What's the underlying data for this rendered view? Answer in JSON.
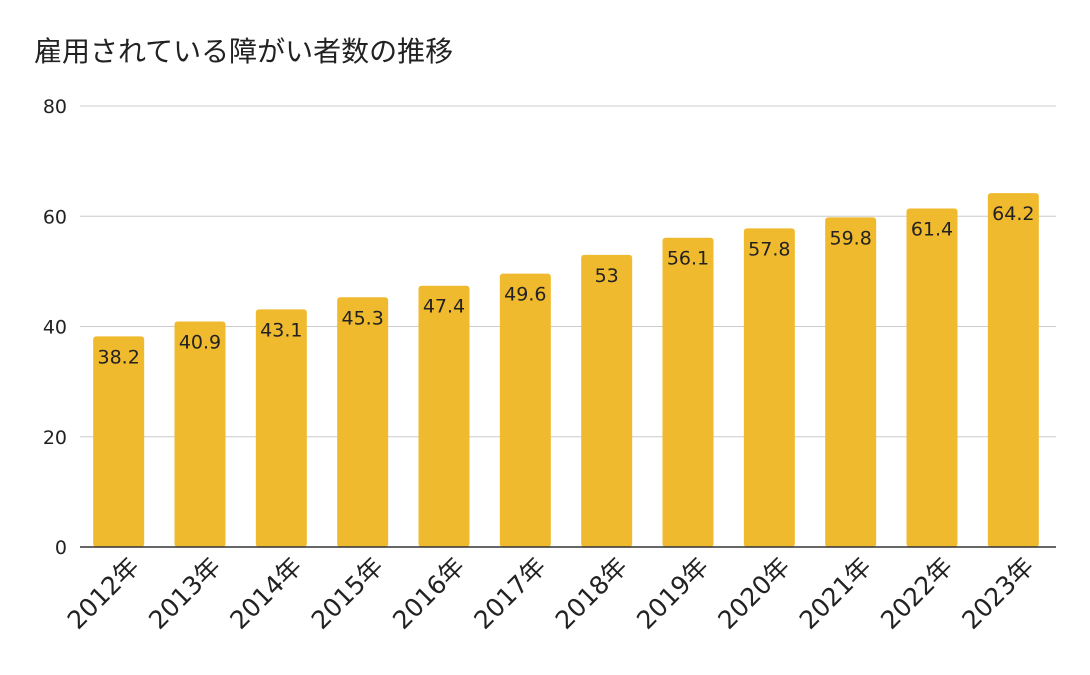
{
  "chart_data": {
    "type": "bar",
    "title": "雇用されている障がい者数の推移",
    "xlabel": "",
    "ylabel": "",
    "categories": [
      "2012年",
      "2013年",
      "2014年",
      "2015年",
      "2016年",
      "2017年",
      "2018年",
      "2019年",
      "2020年",
      "2021年",
      "2022年",
      "2023年"
    ],
    "series": [
      {
        "values": [
          38.2,
          40.9,
          43.1,
          45.3,
          47.4,
          49.6,
          53,
          56.1,
          57.8,
          59.8,
          61.4,
          64.2
        ]
      }
    ],
    "data_labels": [
      "38.2",
      "40.9",
      "43.1",
      "45.3",
      "47.4",
      "49.6",
      "53",
      "56.1",
      "57.8",
      "59.8",
      "61.4",
      "64.2"
    ],
    "ylim": [
      0,
      80
    ],
    "yticks": [
      0,
      20,
      40,
      60,
      80
    ],
    "ytick_labels": [
      "0",
      "20",
      "40",
      "60",
      "80"
    ],
    "grid": true,
    "legend": "none",
    "colors": {
      "bar": "#F0BA2E",
      "grid": "#CCCCCC",
      "axis": "#333333",
      "text": "#222222"
    }
  }
}
